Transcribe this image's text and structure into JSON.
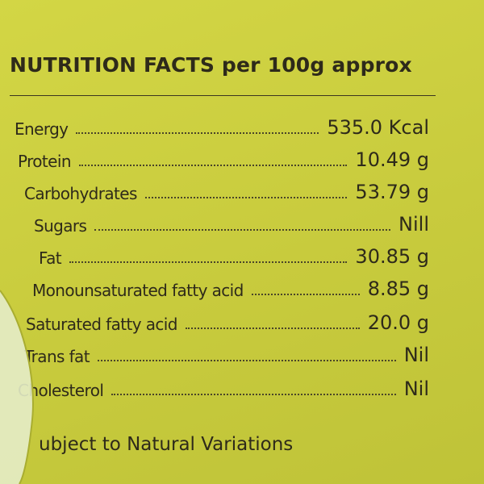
{
  "title": "NUTRITION FACTS per 100g approx",
  "rows": [
    {
      "label": "Energy",
      "value": "535.0 Kcal"
    },
    {
      "label": "Protein",
      "value": "10.49 g"
    },
    {
      "label": "Carbohydrates",
      "value": "53.79 g"
    },
    {
      "label": "Sugars",
      "value": "Nill"
    },
    {
      "label": "Fat",
      "value": "30.85 g"
    },
    {
      "label": "Monounsaturated fatty acid",
      "value": "8.85 g"
    },
    {
      "label": "Saturated fatty acid",
      "value": "20.0 g"
    },
    {
      "label": "Trans fat",
      "value": "Nil"
    },
    {
      "label": "Cholesterol",
      "value": "Nil"
    }
  ],
  "footnote": "ubject to Natural Variations"
}
